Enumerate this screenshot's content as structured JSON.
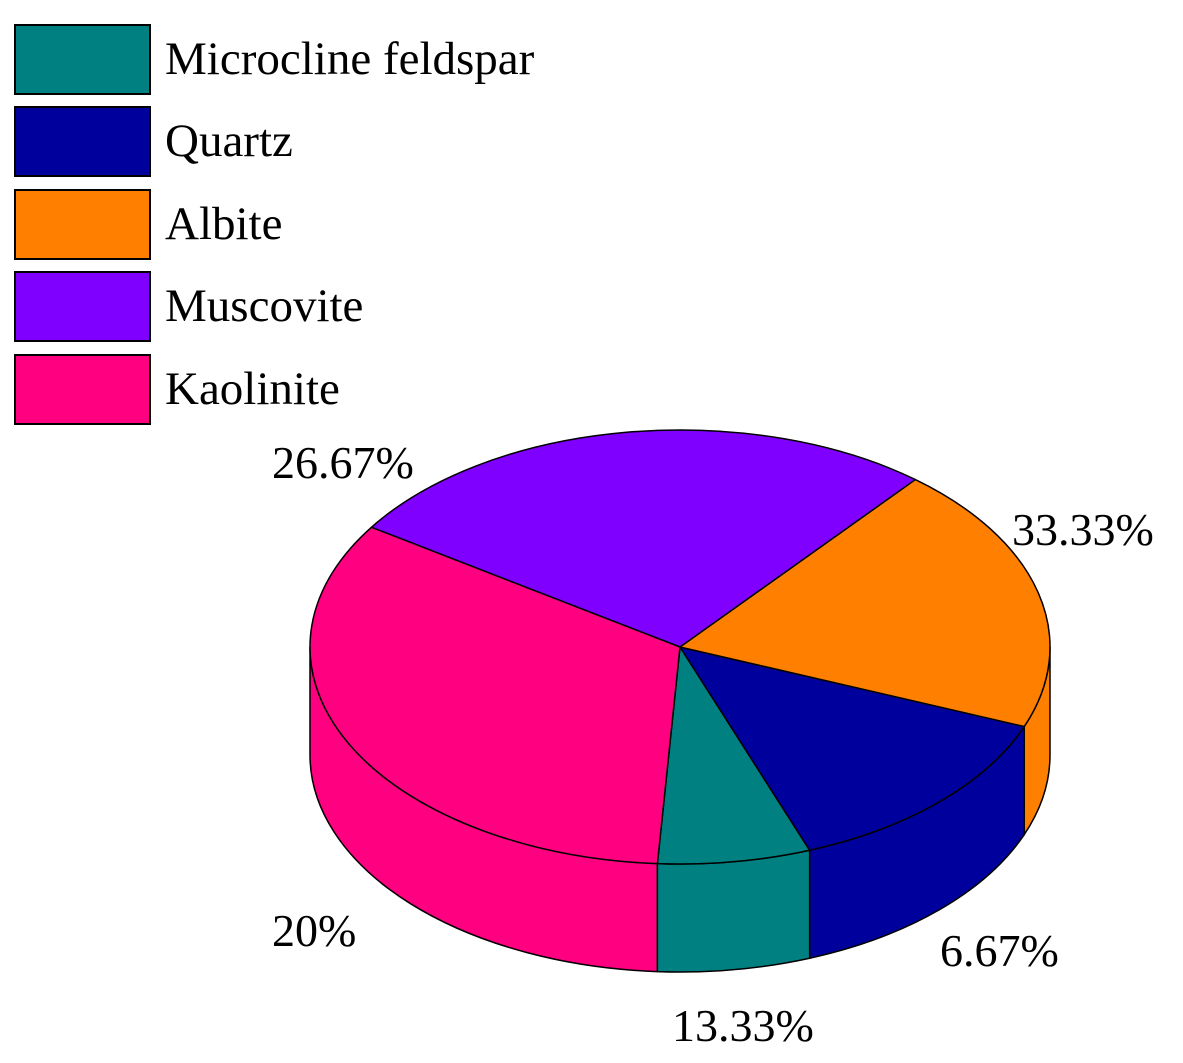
{
  "chart_data": {
    "type": "pie",
    "series": [
      {
        "name": "Microcline feldspar",
        "value": 6.67,
        "label": "6.67%",
        "color": "#008080"
      },
      {
        "name": "Quartz",
        "value": 13.33,
        "label": "13.33%",
        "color": "#00009C"
      },
      {
        "name": "Albite",
        "value": 20,
        "label": "20%",
        "color": "#FF8000"
      },
      {
        "name": "Muscovite",
        "value": 26.67,
        "label": "26.67%",
        "color": "#8000FF"
      },
      {
        "name": "Kaolinite",
        "value": 33.33,
        "label": "33.33%",
        "color": "#FF0080"
      }
    ],
    "legend_position": "top-left",
    "style": "3d-pie"
  }
}
